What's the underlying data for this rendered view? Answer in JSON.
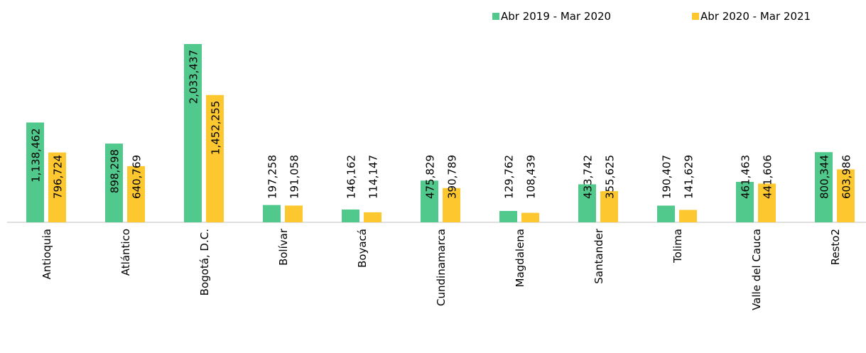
{
  "chart_data": {
    "type": "bar",
    "categories": [
      "Antioquia",
      "Atlántico",
      "Bogotá, D.C.",
      "Bolívar",
      "Boyacá",
      "Cundinamarca",
      "Magdalena",
      "Santander",
      "Tolima",
      "Valle del Cauca",
      "Resto2"
    ],
    "series": [
      {
        "name": "Abr 2019 - Mar 2020",
        "color": "#52c98c",
        "values": [
          1138462,
          898298,
          2033437,
          197258,
          146162,
          475829,
          129762,
          433742,
          190407,
          461463,
          800344
        ],
        "value_labels": [
          "1,138,462",
          "898,298",
          "2,033,437",
          "197,258",
          "146,162",
          "475,829",
          "129,762",
          "433,742",
          "190,407",
          "461,463",
          "800,344"
        ]
      },
      {
        "name": "Abr 2020 - Mar 2021",
        "color": "#fdc82f",
        "values": [
          796724,
          640769,
          1452255,
          191058,
          114147,
          390789,
          108439,
          355625,
          141629,
          441606,
          603986
        ],
        "value_labels": [
          "796,724",
          "640,769",
          "1,452,255",
          "191,058",
          "114,147",
          "390,789",
          "108,439",
          "355,625",
          "141,629",
          "441,606",
          "603,986"
        ]
      }
    ],
    "legend": "top-right"
  }
}
